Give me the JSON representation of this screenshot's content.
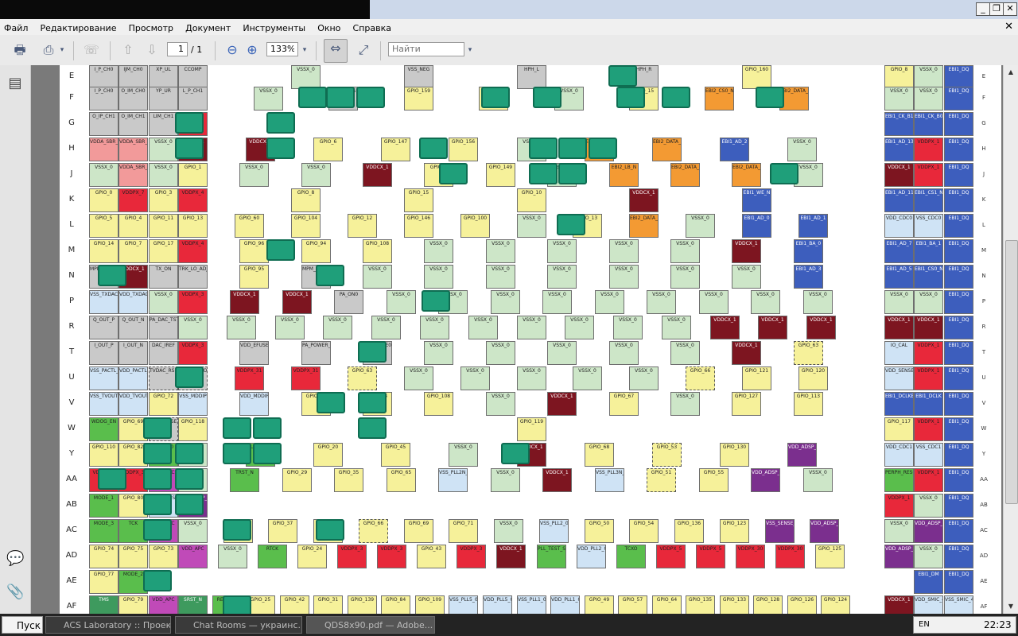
{
  "titlebar": {
    "title": "",
    "min": "_",
    "restore": "❐",
    "close": "✕"
  },
  "menu": [
    "Файл",
    "Редактирование",
    "Просмотр",
    "Документ",
    "Инструменты",
    "Окно",
    "Справка"
  ],
  "menu_close": "✕",
  "toolbar": {
    "page_current": "1",
    "page_total": "/ 1",
    "zoom": "133%",
    "search_placeholder": "Найти"
  },
  "icons": {
    "print": "🖶",
    "share": "⎙",
    "fax": "☏",
    "up": "⇧",
    "down": "⇩",
    "zoom_out": "⊖",
    "zoom_in": "⊕",
    "fit_width": "⇔",
    "fit_page": "⤢",
    "pages": "▤",
    "comments": "💬",
    "attach": "📎",
    "dd": "▾"
  },
  "rows": [
    "E",
    "F",
    "G",
    "H",
    "J",
    "K",
    "L",
    "M",
    "N",
    "P",
    "R",
    "T",
    "U",
    "V",
    "W",
    "Y",
    "AA",
    "AB",
    "AC",
    "AD",
    "AE",
    "AF"
  ],
  "cells": {
    "E": [
      "I_P_CH0",
      "IJM_CH0",
      "XP_UL",
      "CCOMP",
      "VSSX_0",
      "VSS_NEG",
      "HPH_L",
      "HPH_R",
      "GPIO_160",
      "GPIO_8",
      "VSSX_0",
      "EBI1_DQ"
    ],
    "F": [
      "I_P_CH0",
      "O_IM_CH0",
      "YP_UR",
      "L_P_CH1",
      "VSSX_0",
      "USB_VBUS",
      "GPIO_159",
      "GPIO_158",
      "VSSX_0",
      "GPIO_15",
      "EBI2_CS0_N",
      "EBI2_DATA_4",
      "VSSX_0",
      "VSSX_0",
      "EBI1_DQ"
    ],
    "G": [
      "O_IP_CH1",
      "O_IM_CH1",
      "LIM_CH1",
      "VDDPX_1",
      "EBI1_CK_B1",
      "EBI1_CK_B0",
      "EBI1_DQ"
    ],
    "H": [
      "VDDA_SBR_CH0",
      "VDDA_SBR_CH1",
      "VSSX_0",
      "VDDCX_1",
      "VDDCX_1",
      "GPIO_6",
      "GPIO_147",
      "GPIO_156",
      "VSSX_0",
      "EBI2_DATA_10",
      "EBI2_DATA_0",
      "EBI1_AD_2",
      "VSSX_0",
      "EBI1_AD_13",
      "VDDPX_1",
      "EBI1_DQ"
    ],
    "J": [
      "VSSX_0",
      "VDDA_SBR_CH1",
      "VSSX_0",
      "GPIO_1",
      "VSSX_0",
      "VSSX_0",
      "VDDCX_1",
      "GPIO_2",
      "GPIO_149",
      "VSSX_0",
      "EBI2_LB_N",
      "EBI2_DATA_7",
      "EBI2_DATA_3",
      "VSSX_0",
      "VDDCX_1",
      "VDDPX_1",
      "EBI1_DQ"
    ],
    "K": [
      "GPIO_0",
      "VDDPX_7",
      "GPIO_3",
      "VDDPX_4",
      "GPIO_8",
      "GPIO_15",
      "GPIO_10",
      "VDDCX_1",
      "EBI1_WE_N",
      "EBI1_AD_11",
      "EBI1_CS1_N",
      "EBI1_DQ"
    ],
    "L": [
      "GPIO_5",
      "GPIO_4",
      "GPIO_11",
      "GPIO_13",
      "GPIO_60",
      "GPIO_104",
      "GPIO_12",
      "GPIO_146",
      "GPIO_100",
      "VSSX_0",
      "GPIO_13",
      "EBI2_DATA_11",
      "VSSX_0",
      "EBI1_AD_0",
      "EBI1_AD_1",
      "VDD_CDC0",
      "VSS_CDC0",
      "EBI1_DQ"
    ],
    "M": [
      "GPIO_14",
      "GPIO_7",
      "GPIO_17",
      "VDDPX_4",
      "GPIO_96",
      "GPIO_94",
      "GPIO_108",
      "VSSX_0",
      "VSSX_0",
      "VSSX_0",
      "VSSX_0",
      "VSSX_0",
      "VDDCX_1",
      "EBI1_BA_0",
      "EBI1_AD_7",
      "EBI1_BA_1",
      "EBI1_DQ"
    ],
    "N": [
      "MPM_GPIO_2",
      "VDDCX_1",
      "TX_ON",
      "TRK_LO_ADJ",
      "GPIO_95",
      "MPM_GPIO_1",
      "VSSX_0",
      "VSSX_0",
      "VSSX_0",
      "VSSX_0",
      "VSSX_0",
      "VSSX_0",
      "VSSX_0",
      "EBI1_AD_3",
      "EBI1_AD_5",
      "EBI1_CS0_N",
      "EBI1_DQ"
    ],
    "P": [
      "VSS_TXDAC",
      "VDD_TXDAC",
      "VSSX_0",
      "VDDPX_3",
      "VDDCX_1",
      "VDDCX_1",
      "PA_ON0",
      "VSSX_0",
      "VSSX_0",
      "VSSX_0",
      "VSSX_0",
      "VSSX_0",
      "VSSX_0",
      "VSSX_0",
      "VSSX_0",
      "VSSX_0",
      "VSSX_0",
      "VSSX_0",
      "EBI1_DQ"
    ],
    "R": [
      "Q_OUT_P",
      "Q_OUT_N",
      "PA_DAC_TST",
      "VSSX_0",
      "VSSX_0",
      "VSSX_0",
      "VSSX_0",
      "VSSX_0",
      "VSSX_0",
      "VSSX_0",
      "VSSX_0",
      "VSSX_0",
      "VSSX_0",
      "VSSX_0",
      "VDDCX_1",
      "VDDCX_1",
      "VDDCX_1",
      "VDDCX_1",
      "VDDCX_1",
      "EBI1_DQ"
    ],
    "T": [
      "I_OUT_P",
      "I_OUT_N",
      "DAC_IREF",
      "VDDPX_3",
      "VDD_EFUSE_PROG",
      "PA_POWER_CTL",
      "PA_RANGE0",
      "VSSX_0",
      "VSSX_0",
      "VSSX_0",
      "VSSX_0",
      "VSSX_0",
      "VDDCX_1",
      "GPIO_63",
      "IO_CAL",
      "VDDPX_1",
      "EBI1_DQ"
    ],
    "U": [
      "VSS_PACTL_DAC",
      "VDD_PACTL_DAC",
      "TVDAC_RSET",
      "TV_DAC_COMPOSITE_Y",
      "VDDPX_31",
      "VDDPX_31",
      "GPIO_63",
      "VSSX_0",
      "VSSX_0",
      "VSSX_0",
      "VSSX_0",
      "VSSX_0",
      "GPIO_66",
      "GPIO_121",
      "GPIO_120",
      "VDD_SENSE_DIG",
      "VDDPX_1",
      "EBI1_DQ"
    ],
    "V": [
      "VSS_TVOUT_DAC",
      "VDD_TVOUT_DAC",
      "GPIO_72",
      "VSS_MDDIP",
      "VDD_MDDIP",
      "GPIO_39",
      "GPIO_44",
      "GPIO_108",
      "VSSX_0",
      "VDDCX_1",
      "GPIO_67",
      "VSSX_0",
      "GPIO_127",
      "GPIO_113",
      "EBI1_DCLKB",
      "EBI1_DCLK",
      "EBI1_DQ"
    ],
    "W": [
      "WDOG_EN",
      "GPIO_69",
      "VSS_SENSE_APC",
      "GPIO_118",
      "GPIO_119",
      "GPIO_117",
      "VDDPX_1",
      "EBI1_DQ"
    ],
    "Y": [
      "GPIO_110",
      "GPIO_82",
      "MODE_0",
      "VSSX_0",
      "SLEEP_CLK",
      "GPIO_20",
      "GPIO_45",
      "VSSX_0",
      "VDDCX_1",
      "GPIO_68",
      "GPIO_53",
      "GPIO_130",
      "VDD_ADSP_VDDA",
      "VDD_CDC1",
      "VSS_CDC1",
      "EBI1_DQ"
    ],
    "AA": [
      "VDDPX_3",
      "VDDPX_3",
      "VDD_APC",
      "VSSX_0",
      "TRST_N",
      "GPIO_29",
      "GPIO_35",
      "GPIO_65",
      "VSS_PLL2N_Q",
      "VSSX_0",
      "VDDCX_1",
      "VSS_PLL3N_Q",
      "GPIO_51",
      "GPIO_55",
      "VDD_ADSP_VDDA",
      "VSSX_0",
      "PERPH_RESOUT_N",
      "VDDPX_1",
      "EBI1_DQ"
    ],
    "AB": [
      "MODE_1",
      "GPIO_80",
      "VDD_SENSE_APC",
      "VDD_ADSP_VDDA",
      "VDDPX_1",
      "VSSX_0",
      "EBI1_DQ"
    ],
    "AC": [
      "MODE_3",
      "TCK",
      "VDD_APC",
      "VSSX_0",
      "GPIO_28",
      "GPIO_37",
      "GPIO_33",
      "GPIO_66",
      "GPIO_69",
      "GPIO_71",
      "VSSX_0",
      "VSS_PLL2_0",
      "GPIO_50",
      "GPIO_54",
      "GPIO_136",
      "GPIO_123",
      "VSS_SENSE_ADSP",
      "VDD_ADSP_VDDA",
      "VSSX_0",
      "VDD_ADSP_VDDA",
      "EBI1_DQ"
    ],
    "AD": [
      "GPIO_74",
      "GPIO_75",
      "GPIO_73",
      "VDD_APC",
      "VSSX_0",
      "RTCK",
      "GPIO_24",
      "VDDPX_3",
      "VDDPX_3",
      "GPIO_43",
      "VDDPX_3",
      "VDDCX_1",
      "PLL_TEST_SE",
      "VDD_PLL2_0",
      "TCXO",
      "VDDPX_5",
      "VDDPX_5",
      "VDDPX_30",
      "VDDPX_30",
      "GPIO_125",
      "VDD_ADSP_VDDA",
      "VSSX_0",
      "EBI1_DQ"
    ],
    "AE": [
      "GPIO_77",
      "MODE_2",
      "EBI1_DM",
      "EBI1_DQ"
    ],
    "AF": [
      "TMS",
      "GPIO_79",
      "VDD_APC",
      "SRST_N",
      "RESIN_N",
      "GPIO_25",
      "GPIO_42",
      "GPIO_31",
      "GPIO_139",
      "GPIO_84",
      "GPIO_109",
      "VSS_PLL5_0",
      "VDD_PLL5_0",
      "VSS_PLL1_0",
      "VDD_PLL1_0",
      "GPIO_49",
      "GPIO_57",
      "GPIO_64",
      "GPIO_135",
      "GPIO_133",
      "GPIO_128",
      "GPIO_126",
      "GPIO_124",
      "VDDCX_1",
      "VDD_SMIC_4",
      "VSS_SMIC_4"
    ]
  },
  "colors": {
    "yellow": "#f6f19a",
    "green": "#cde6c8",
    "blue": "#3d5ebd",
    "red": "#e8283a",
    "maroon": "#7d1520",
    "orange": "#f39a33",
    "pink": "#f29a9a",
    "gray": "#c9c9c9",
    "lightblue": "#cfe3f5",
    "purple": "#7b2f8e",
    "magenta": "#c04ab8",
    "brightgreen": "#5abe4c",
    "darkgreen": "#3e9a5e"
  },
  "taskbar": {
    "start": "Пуск",
    "tasks": [
      "ACS Laboratory :: Проект...",
      "Chat Rooms — укрaинс...",
      "QDS8x90.pdf — Adobe..."
    ],
    "time": "22:23",
    "lang": "EN"
  }
}
